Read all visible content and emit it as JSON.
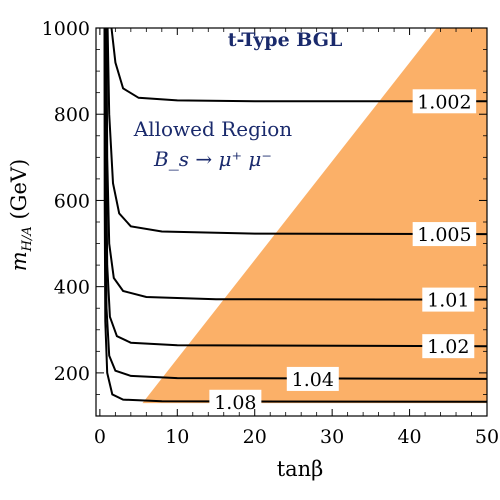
{
  "chart_data": {
    "type": "line",
    "title": "t-Type BGL",
    "xlabel": "tanβ",
    "ylabel": "m_{H/A} (GeV)",
    "xlim": [
      -0.5,
      50
    ],
    "ylim": [
      100,
      1000
    ],
    "x_ticks": [
      0,
      10,
      20,
      30,
      40,
      50
    ],
    "y_ticks": [
      200,
      400,
      600,
      800,
      1000
    ],
    "annotation": {
      "line1": "Allowed Region",
      "line2": "B_s → μ⁺ μ⁻"
    },
    "excluded_region": {
      "color": "#fbb068",
      "polygon": [
        [
          5.5,
          130
        ],
        [
          50,
          130
        ],
        [
          50,
          1000
        ],
        [
          43.5,
          1000
        ]
      ]
    },
    "contour_color": "#000000",
    "series": [
      {
        "name": "1.002",
        "label": "1.002",
        "asymptote": 830,
        "label_at": [
          44.5,
          830
        ],
        "points": [
          [
            1.5,
            1000
          ],
          [
            2.0,
            920
          ],
          [
            3.0,
            860
          ],
          [
            5,
            838
          ],
          [
            10,
            832
          ],
          [
            20,
            830
          ],
          [
            50,
            830
          ]
        ]
      },
      {
        "name": "1.005",
        "label": "1.005",
        "asymptote": 522,
        "label_at": [
          44.5,
          522
        ],
        "points": [
          [
            1.0,
            1000
          ],
          [
            1.2,
            800
          ],
          [
            1.7,
            640
          ],
          [
            2.5,
            570
          ],
          [
            4,
            540
          ],
          [
            8,
            528
          ],
          [
            20,
            523
          ],
          [
            50,
            522
          ]
        ]
      },
      {
        "name": "1.01",
        "label": "1.01",
        "asymptote": 370,
        "label_at": [
          45,
          370
        ],
        "points": [
          [
            0.85,
            1000
          ],
          [
            0.95,
            700
          ],
          [
            1.2,
            500
          ],
          [
            1.8,
            420
          ],
          [
            3,
            390
          ],
          [
            6,
            376
          ],
          [
            15,
            371
          ],
          [
            50,
            370
          ]
        ]
      },
      {
        "name": "1.02",
        "label": "1.02",
        "asymptote": 262,
        "label_at": [
          45,
          262
        ],
        "points": [
          [
            0.75,
            1000
          ],
          [
            0.8,
            700
          ],
          [
            0.95,
            450
          ],
          [
            1.3,
            330
          ],
          [
            2.2,
            285
          ],
          [
            4,
            270
          ],
          [
            10,
            264
          ],
          [
            50,
            262
          ]
        ]
      },
      {
        "name": "1.04",
        "label": "1.04",
        "asymptote": 186,
        "label_at": [
          27.5,
          186
        ],
        "points": [
          [
            0.65,
            1000
          ],
          [
            0.7,
            600
          ],
          [
            0.85,
            350
          ],
          [
            1.2,
            240
          ],
          [
            2.0,
            205
          ],
          [
            4,
            193
          ],
          [
            10,
            188
          ],
          [
            50,
            186
          ]
        ]
      },
      {
        "name": "1.08",
        "label": "1.08",
        "asymptote": 133,
        "label_at": [
          17.5,
          133
        ],
        "points": [
          [
            0.6,
            1000
          ],
          [
            0.62,
            600
          ],
          [
            0.7,
            320
          ],
          [
            0.95,
            200
          ],
          [
            1.6,
            150
          ],
          [
            3,
            138
          ],
          [
            8,
            134
          ],
          [
            50,
            133
          ]
        ]
      }
    ]
  }
}
